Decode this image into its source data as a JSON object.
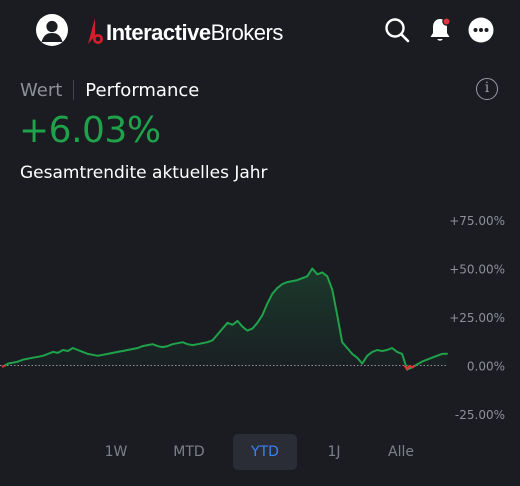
{
  "header": {
    "logo_bold": "Interactive",
    "logo_regular": "Brokers",
    "icons": [
      "user-avatar-icon",
      "search-icon",
      "bell-icon",
      "more-icon"
    ],
    "notification_dot": true
  },
  "tabs": {
    "wert": "Wert",
    "performance": "Performance",
    "selected": "performance"
  },
  "summary": {
    "value": "+6.03%",
    "label": "Gesamtrendite aktuelles Jahr"
  },
  "colors": {
    "positive": "#1fa24a",
    "negative": "#e5323a",
    "accent": "#3b82f6",
    "background": "#1a1c22"
  },
  "ranges": {
    "items": [
      "1W",
      "MTD",
      "YTD",
      "1J",
      "Alle"
    ],
    "selected": "YTD"
  },
  "chart_data": {
    "type": "line",
    "y_tick_labels": [
      "+75.00%",
      "+50.00%",
      "+25.00%",
      "0.00%",
      "-25.00%"
    ],
    "y_ticks": [
      75,
      50,
      25,
      0,
      -25
    ],
    "ylim": [
      -25,
      75
    ],
    "baseline": 0,
    "series": [
      {
        "values": [
          -0.5,
          1,
          1.5,
          2,
          3,
          3.5,
          4,
          4.5,
          5,
          6,
          7,
          6.5,
          8,
          7.5,
          9,
          8,
          7,
          6,
          5.5,
          5,
          5.5,
          6,
          6.5,
          7,
          7.5,
          8,
          8.5,
          9,
          10,
          10.5,
          11,
          10,
          9.5,
          10,
          11,
          11.5,
          12,
          11,
          10.5,
          11,
          11.5,
          12,
          13,
          16,
          19,
          22,
          21,
          23,
          20,
          18,
          19,
          22,
          26,
          32,
          37,
          40,
          42,
          43,
          43.5,
          44,
          45,
          46,
          50,
          47,
          48,
          46,
          39,
          26,
          12,
          9,
          6,
          4,
          1,
          5,
          7,
          8,
          7.5,
          8,
          9,
          7,
          6,
          -2,
          -1,
          0.5,
          2,
          3,
          4,
          5,
          6,
          6.03
        ]
      }
    ]
  }
}
